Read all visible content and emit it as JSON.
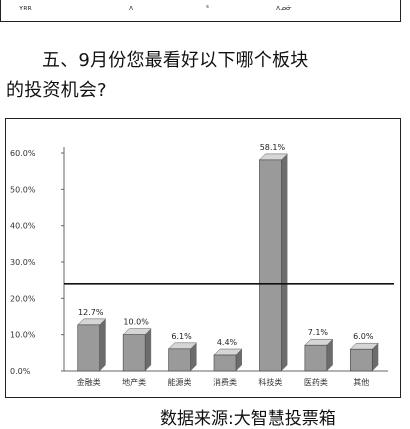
{
  "top_strip": {
    "cells": [
      "ʏʀʀ",
      "ʌ",
      "ᔆ",
      "ʌᓄᓃ"
    ]
  },
  "question": {
    "line1": "五、9月份您最看好以下哪个板块",
    "line2": "的投资机会?"
  },
  "chart_data": {
    "type": "bar",
    "categories": [
      "金融类",
      "地产类",
      "能源类",
      "消费类",
      "科技类",
      "医药类",
      "其他"
    ],
    "values": [
      12.7,
      10.0,
      6.1,
      4.4,
      58.1,
      7.1,
      6.0
    ],
    "data_labels": [
      "12.7%",
      "10.0%",
      "6.1%",
      "4.4%",
      "58.1%",
      "7.1%",
      "6.0%"
    ],
    "y_ticks": [
      0,
      10,
      20,
      30,
      40,
      50,
      60
    ],
    "y_tick_labels": [
      "0.0%",
      "10.0%",
      "20.0%",
      "30.0%",
      "40.0%",
      "50.0%",
      "60.0%"
    ],
    "ylim": [
      0,
      60
    ],
    "reference_line": 24,
    "grid": false,
    "bar_style": "3d",
    "colors": {
      "front": "#9a9a9a",
      "top": "#d6d6d6",
      "side": "#6c6c6c",
      "line": "#111111"
    }
  },
  "source": "数据来源:大智慧投票箱"
}
